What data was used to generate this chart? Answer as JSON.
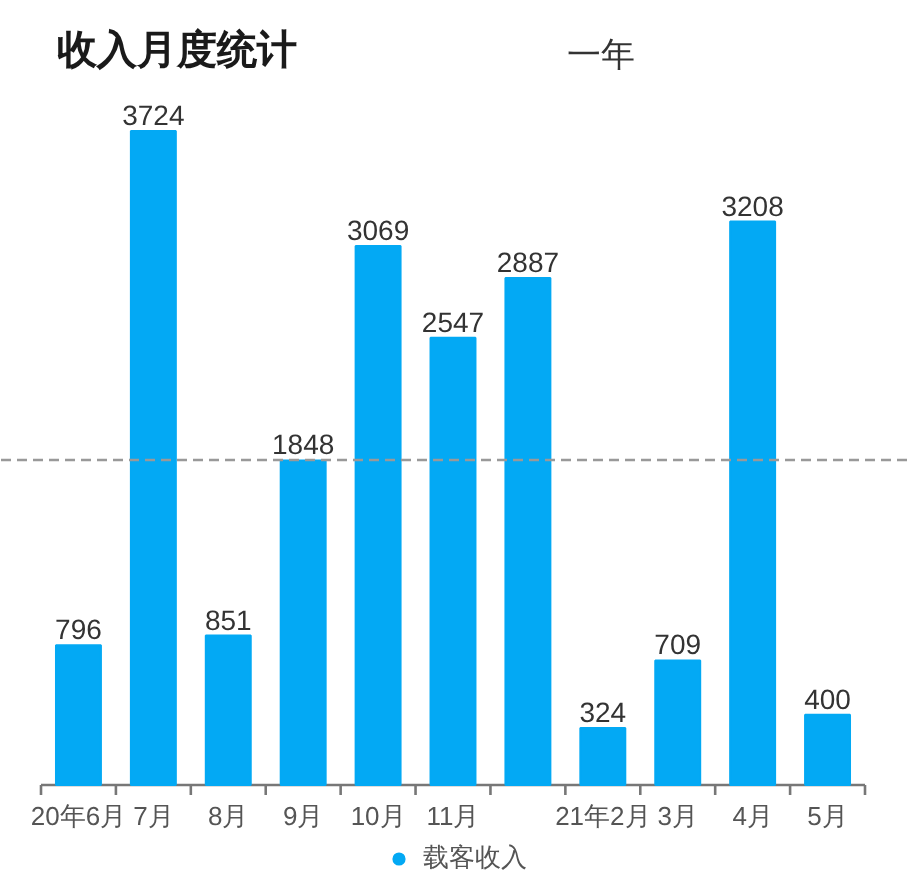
{
  "chart_data": {
    "type": "bar",
    "title": "收入月度统计",
    "categories": [
      "20年6月",
      "7月",
      "8月",
      "9月",
      "10月",
      "11月",
      null,
      "21年2月",
      "3月",
      "4月",
      "5月"
    ],
    "series": [
      {
        "name": "载客收入",
        "color": "#03a9f4",
        "values": [
          796,
          3724,
          851,
          1848,
          3069,
          2547,
          2887,
          324,
          709,
          3208,
          400
        ]
      }
    ],
    "tick_labels": "x",
    "data_labels": true,
    "grid": false,
    "legend": "bottom",
    "ref_lines": [
      {
        "axis": "y",
        "value": 1851,
        "color": "#999999",
        "line_style": "dashed"
      }
    ],
    "annotations": [
      "一年"
    ]
  }
}
